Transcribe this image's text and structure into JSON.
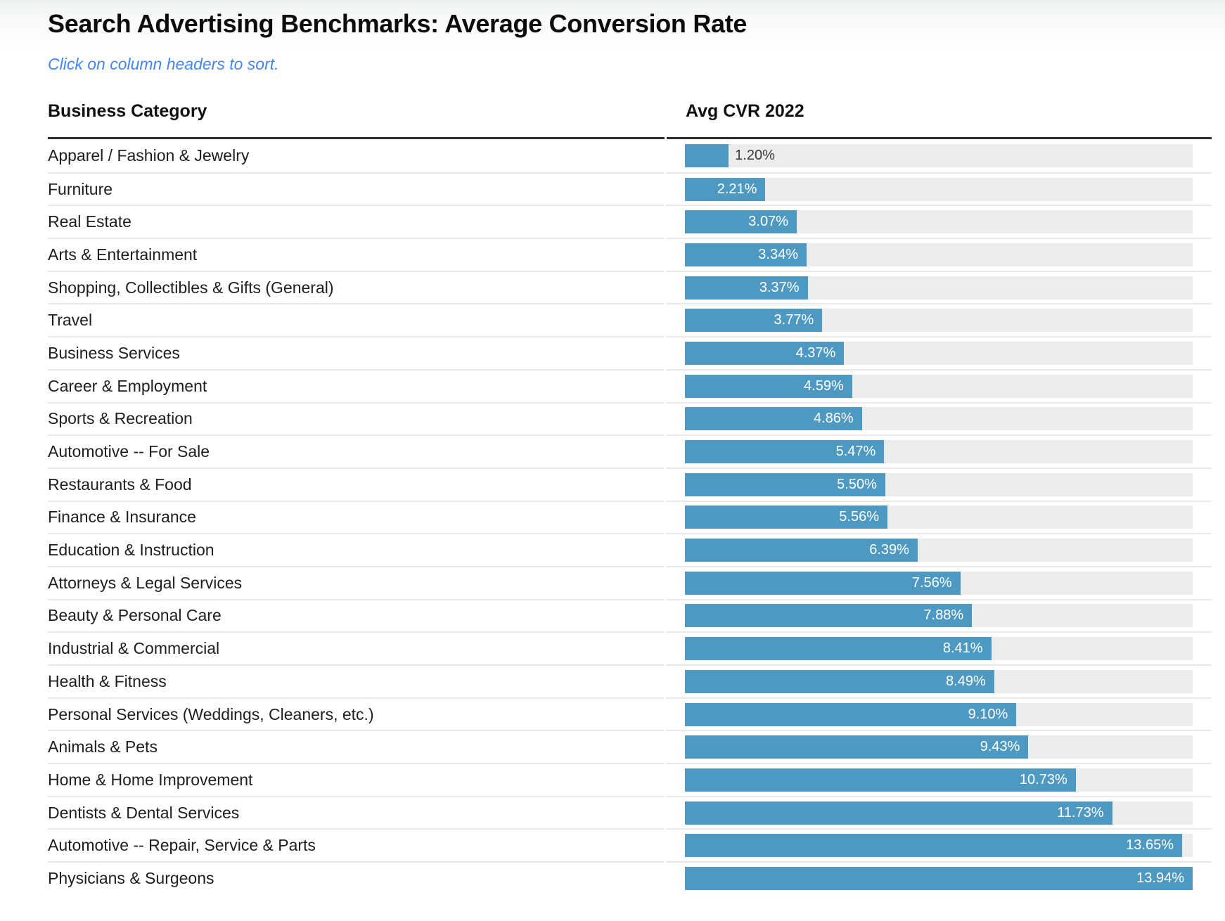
{
  "page": {
    "title": "Search Advertising Benchmarks: Average Conversion Rate",
    "subtitle": "Click on column headers to sort.",
    "subtitle_color": "#4285F4"
  },
  "table": {
    "columns": [
      {
        "label": "Business Category",
        "sortable": true
      },
      {
        "label": "Avg CVR 2022",
        "sortable": true
      }
    ]
  },
  "chart_data": {
    "type": "bar",
    "orientation": "horizontal",
    "title": "Search Advertising Benchmarks: Average Conversion Rate",
    "xlabel": "Avg CVR 2022",
    "ylabel": "Business Category",
    "xmax": 13.94,
    "grid": false,
    "legend": "none",
    "bar_color": "#4E99C2",
    "track_color": "#ECECEC",
    "categories": [
      "Apparel / Fashion & Jewelry",
      "Furniture",
      "Real Estate",
      "Arts & Entertainment",
      "Shopping, Collectibles & Gifts (General)",
      "Travel",
      "Business Services",
      "Career & Employment",
      "Sports & Recreation",
      "Automotive -- For Sale",
      "Restaurants & Food",
      "Finance & Insurance",
      "Education & Instruction",
      "Attorneys & Legal Services",
      "Beauty & Personal Care",
      "Industrial & Commercial",
      "Health & Fitness",
      "Personal Services (Weddings, Cleaners, etc.)",
      "Animals & Pets",
      "Home & Home Improvement",
      "Dentists & Dental Services",
      "Automotive -- Repair, Service & Parts",
      "Physicians & Surgeons"
    ],
    "values": [
      1.2,
      2.21,
      3.07,
      3.34,
      3.37,
      3.77,
      4.37,
      4.59,
      4.86,
      5.47,
      5.5,
      5.56,
      6.39,
      7.56,
      7.88,
      8.41,
      8.49,
      9.1,
      9.43,
      10.73,
      11.73,
      13.65,
      13.94
    ],
    "value_labels": [
      "1.20%",
      "2.21%",
      "3.07%",
      "3.34%",
      "3.37%",
      "3.77%",
      "4.37%",
      "4.59%",
      "4.86%",
      "5.47%",
      "5.50%",
      "5.56%",
      "6.39%",
      "7.56%",
      "7.88%",
      "8.41%",
      "8.49%",
      "9.10%",
      "9.43%",
      "10.73%",
      "11.73%",
      "13.65%",
      "13.94%"
    ]
  }
}
